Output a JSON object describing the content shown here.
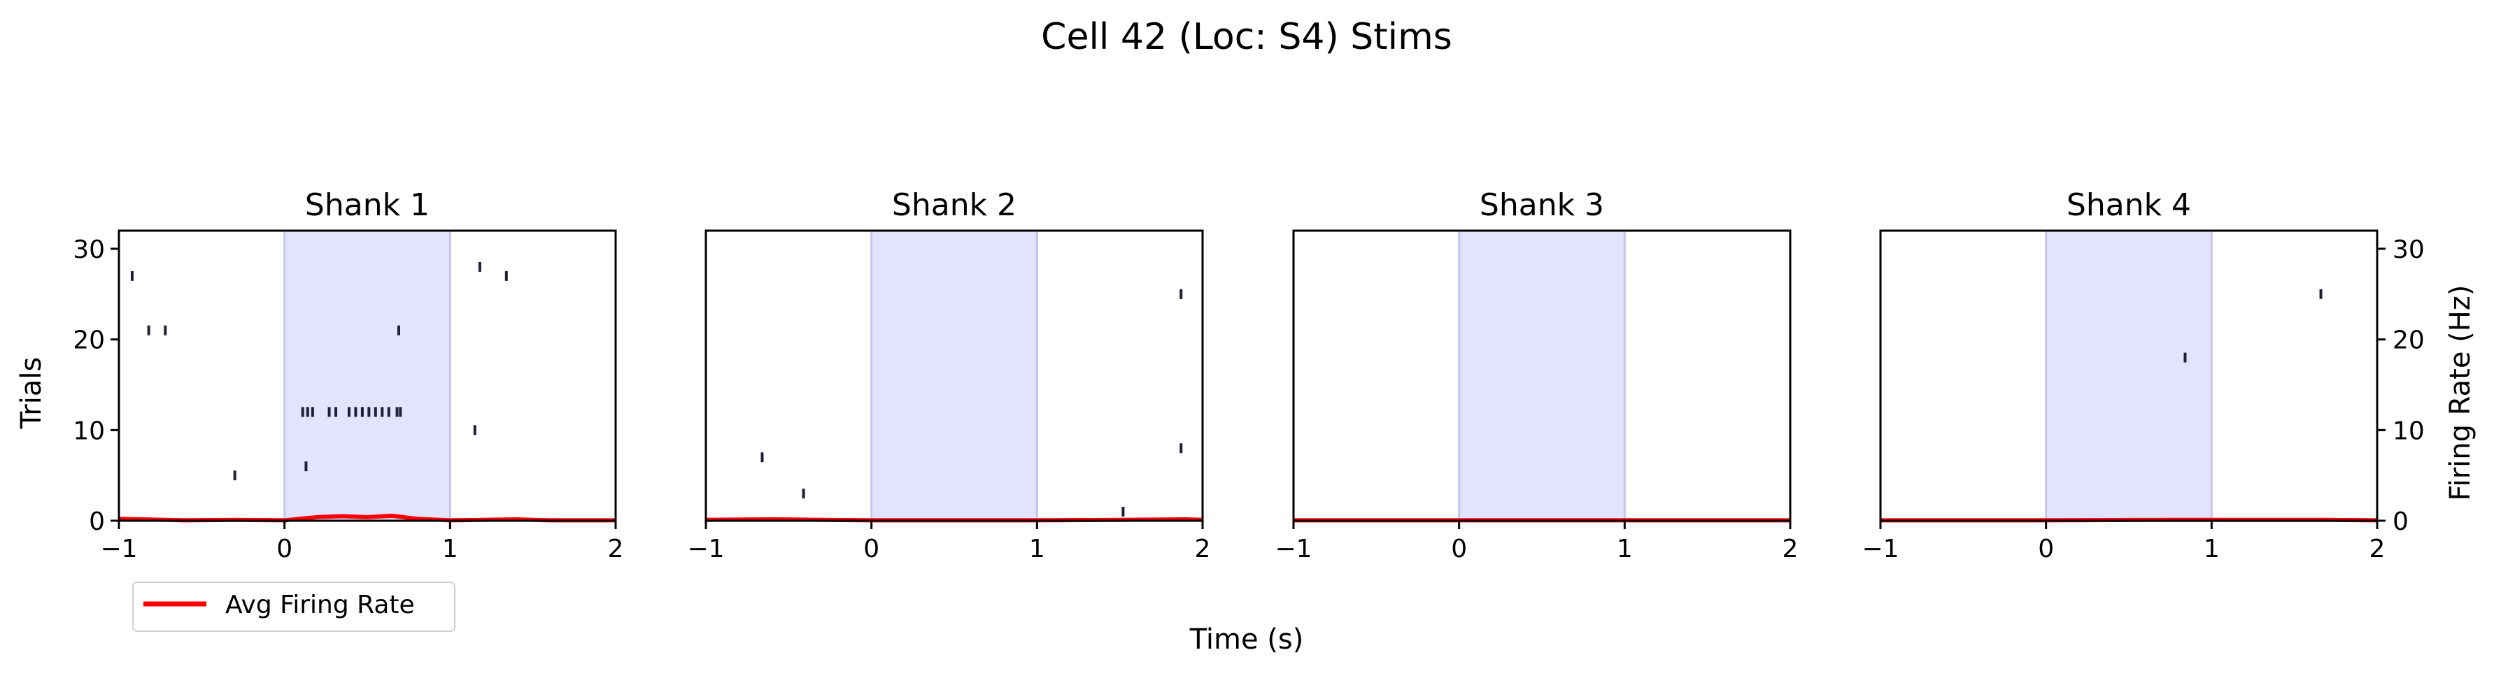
{
  "figure": {
    "title": "Cell 42 (Loc: S4) Stims",
    "xlabel": "Time (s)",
    "ylabel_left": "Trials",
    "ylabel_right": "Firing Rate (Hz)"
  },
  "legend": {
    "label": "Avg Firing Rate",
    "placement": "lower-left",
    "color": "#ff0000"
  },
  "colors": {
    "stim_shade": "#e3e3ff",
    "stim_edge": "#c5c5f2",
    "raster": "#1f1f3a",
    "rate": "#ff0000"
  },
  "chart_data": [
    {
      "type": "raster",
      "title": "Shank 1",
      "xlim": [
        -1,
        2
      ],
      "ylim": [
        0,
        32
      ],
      "xticks": [
        "−1",
        "0",
        "1",
        "2"
      ],
      "yticks": [
        "0",
        "10",
        "20",
        "30"
      ],
      "stim_window": [
        0,
        1
      ],
      "spikes": [
        [
          -0.92,
          27
        ],
        [
          -0.82,
          21
        ],
        [
          -0.72,
          21
        ],
        [
          -0.3,
          5
        ],
        [
          0.11,
          12
        ],
        [
          0.14,
          12
        ],
        [
          0.17,
          12
        ],
        [
          0.27,
          12
        ],
        [
          0.31,
          12
        ],
        [
          0.39,
          12
        ],
        [
          0.43,
          12
        ],
        [
          0.47,
          12
        ],
        [
          0.51,
          12
        ],
        [
          0.55,
          12
        ],
        [
          0.59,
          12
        ],
        [
          0.63,
          12
        ],
        [
          0.68,
          12
        ],
        [
          0.7,
          12
        ],
        [
          0.13,
          6
        ],
        [
          0.69,
          21
        ],
        [
          1.15,
          10
        ],
        [
          1.18,
          28
        ],
        [
          1.34,
          27
        ]
      ],
      "rate": {
        "x": [
          -1,
          -0.6,
          -0.3,
          0,
          0.2,
          0.35,
          0.5,
          0.65,
          0.8,
          1.0,
          1.2,
          1.4,
          1.6,
          2
        ],
        "y": [
          0.2,
          0.05,
          0.1,
          0.05,
          0.4,
          0.5,
          0.4,
          0.55,
          0.2,
          0.05,
          0.1,
          0.15,
          0.05,
          0.05
        ]
      }
    },
    {
      "type": "raster",
      "title": "Shank 2",
      "xlim": [
        -1,
        2
      ],
      "ylim": [
        0,
        32
      ],
      "xticks": [
        "−1",
        "0",
        "1",
        "2"
      ],
      "yticks": [],
      "stim_window": [
        0,
        1
      ],
      "spikes": [
        [
          -0.66,
          7
        ],
        [
          -0.41,
          3
        ],
        [
          1.52,
          1
        ],
        [
          1.87,
          25
        ],
        [
          1.87,
          8
        ]
      ],
      "rate": {
        "x": [
          -1,
          -0.6,
          -0.3,
          0,
          0.5,
          1.0,
          1.5,
          1.9,
          2
        ],
        "y": [
          0.1,
          0.15,
          0.1,
          0.05,
          0.05,
          0.05,
          0.1,
          0.15,
          0.1
        ]
      }
    },
    {
      "type": "raster",
      "title": "Shank 3",
      "xlim": [
        -1,
        2
      ],
      "ylim": [
        0,
        32
      ],
      "xticks": [
        "−1",
        "0",
        "1",
        "2"
      ],
      "yticks": [],
      "stim_window": [
        0,
        1
      ],
      "spikes": [],
      "rate": {
        "x": [
          -1,
          2
        ],
        "y": [
          0.05,
          0.05
        ]
      }
    },
    {
      "type": "raster",
      "title": "Shank 4",
      "xlim": [
        -1,
        2
      ],
      "ylim": [
        0,
        32
      ],
      "xticks": [
        "−1",
        "0",
        "1",
        "2"
      ],
      "yticks": [
        "0",
        "10",
        "20",
        "30"
      ],
      "yticks_side": "right",
      "stim_window": [
        0,
        1
      ],
      "spikes": [
        [
          0.84,
          18
        ],
        [
          1.66,
          25
        ]
      ],
      "rate": {
        "x": [
          -1,
          0,
          0.8,
          1.7,
          2
        ],
        "y": [
          0.05,
          0.05,
          0.1,
          0.1,
          0.05
        ]
      }
    }
  ]
}
